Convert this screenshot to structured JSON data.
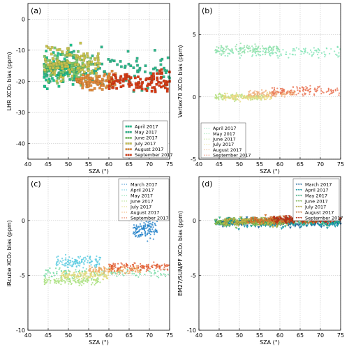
{
  "chart_data": [
    {
      "type": "scatter",
      "panel_label": "(a)",
      "xlabel": "SZA (°)",
      "ylabel": "LHR XCO₂ bias (ppm)",
      "xlim": [
        40,
        75
      ],
      "ylim": [
        -45,
        5
      ],
      "xticks": [
        "40",
        "45",
        "50",
        "55",
        "60",
        "65",
        "70",
        "75"
      ],
      "yticks": [
        "0",
        "-10",
        "-20",
        "-30",
        "-40"
      ],
      "grid": true,
      "legend_position": "lower-right",
      "marker": "square",
      "series": [
        {
          "name": "April 2017",
          "color": "#1fc18c",
          "x_range": [
            44,
            52
          ],
          "y_mean": -16,
          "y_spread": 6
        },
        {
          "name": "May 2017",
          "color": "#2fb58a",
          "x_range": [
            44,
            75
          ],
          "y_mean": -16,
          "y_spread": 7
        },
        {
          "name": "June 2017",
          "color": "#7cc86a",
          "x_range": [
            44,
            56
          ],
          "y_mean": -15,
          "y_spread": 6
        },
        {
          "name": "July 2017",
          "color": "#c7c24f",
          "x_range": [
            44,
            58
          ],
          "y_mean": -14,
          "y_spread": 6
        },
        {
          "name": "August 2017",
          "color": "#e08a3a",
          "x_range": [
            52,
            62
          ],
          "y_mean": -20,
          "y_spread": 3
        },
        {
          "name": "September 2017",
          "color": "#d43b16",
          "x_range": [
            60,
            75
          ],
          "y_mean": -20,
          "y_spread": 4
        }
      ]
    },
    {
      "type": "scatter",
      "panel_label": "(b)",
      "xlabel": "SZA (°)",
      "ylabel": "Vertex70 XCO₂ bias (ppm)",
      "xlim": [
        40,
        75
      ],
      "ylim": [
        -5,
        7.5
      ],
      "xticks": [
        "40",
        "45",
        "50",
        "55",
        "60",
        "65",
        "70",
        "75"
      ],
      "yticks": [
        "5",
        "0",
        "-5"
      ],
      "grid": true,
      "legend_position": "lower-left",
      "marker": "dot",
      "series": [
        {
          "name": "April 2017",
          "color": "#7fe3b5",
          "x_range": [
            44,
            75
          ],
          "y_mean": 3.6,
          "y_spread": 0.5
        },
        {
          "name": "May 2017",
          "color": "#8ee0a8",
          "x_range": [
            44,
            60
          ],
          "y_mean": 3.8,
          "y_spread": 0.4
        },
        {
          "name": "June 2017",
          "color": "#b5e07e",
          "x_range": [
            44,
            56
          ],
          "y_mean": 0.0,
          "y_spread": 0.3
        },
        {
          "name": "July 2017",
          "color": "#e8d880",
          "x_range": [
            46,
            58
          ],
          "y_mean": 0.0,
          "y_spread": 0.3
        },
        {
          "name": "August 2017",
          "color": "#f0b080",
          "x_range": [
            52,
            64
          ],
          "y_mean": 0.3,
          "y_spread": 0.3
        },
        {
          "name": "September 2017",
          "color": "#e87050",
          "x_range": [
            58,
            75
          ],
          "y_mean": 0.5,
          "y_spread": 0.4
        }
      ]
    },
    {
      "type": "scatter",
      "panel_label": "(c)",
      "xlabel": "SZA (°)",
      "ylabel": "IRcube XCO₂ bias (ppm)",
      "xlim": [
        40,
        75
      ],
      "ylim": [
        -10,
        4
      ],
      "xticks": [
        "40",
        "45",
        "50",
        "55",
        "60",
        "65",
        "70",
        "75"
      ],
      "yticks": [
        "0",
        "-5",
        "-10"
      ],
      "grid": true,
      "legend_position": "upper-right",
      "marker": "dot",
      "series": [
        {
          "name": "March 2017",
          "color": "#1f7fc8",
          "x_range": [
            66,
            72
          ],
          "y_mean": -0.8,
          "y_spread": 1.0
        },
        {
          "name": "April 2017",
          "color": "#55c9e0",
          "x_range": [
            47,
            58
          ],
          "y_mean": -3.8,
          "y_spread": 0.7
        },
        {
          "name": "May 2017",
          "color": "#6fd9a0",
          "x_range": [
            44,
            75
          ],
          "y_mean": -4.8,
          "y_spread": 0.5
        },
        {
          "name": "June 2017",
          "color": "#a8e07c",
          "x_range": [
            44,
            58
          ],
          "y_mean": -5.5,
          "y_spread": 0.4
        },
        {
          "name": "July 2017",
          "color": "#e0d875",
          "x_range": [
            48,
            60
          ],
          "y_mean": -5.0,
          "y_spread": 0.4
        },
        {
          "name": "August 2017",
          "color": "#f0a860",
          "x_range": [
            55,
            68
          ],
          "y_mean": -4.5,
          "y_spread": 0.4
        },
        {
          "name": "September 2017",
          "color": "#e0582c",
          "x_range": [
            60,
            75
          ],
          "y_mean": -4.2,
          "y_spread": 0.4
        }
      ]
    },
    {
      "type": "scatter",
      "panel_label": "(d)",
      "xlabel": "SZA (°)",
      "ylabel": "EM27/SUN/PF XCO₂ bias (ppm)",
      "xlim": [
        40,
        75
      ],
      "ylim": [
        -10,
        4
      ],
      "xticks": [
        "40",
        "45",
        "50",
        "55",
        "60",
        "65",
        "70",
        "75"
      ],
      "yticks": [
        "0",
        "-5",
        "-10"
      ],
      "grid": true,
      "legend_position": "upper-right",
      "marker": "triangle-down",
      "series": [
        {
          "name": "March 2017",
          "color": "#1b6fae",
          "x_range": [
            44,
            75
          ],
          "y_mean": -0.2,
          "y_spread": 0.4
        },
        {
          "name": "April 2017",
          "color": "#1aa7b8",
          "x_range": [
            44,
            75
          ],
          "y_mean": -0.3,
          "y_spread": 0.4
        },
        {
          "name": "May 2017",
          "color": "#36c28c",
          "x_range": [
            44,
            75
          ],
          "y_mean": -0.1,
          "y_spread": 0.4
        },
        {
          "name": "June 2017",
          "color": "#8ccc5a",
          "x_range": [
            44,
            60
          ],
          "y_mean": -0.2,
          "y_spread": 0.4
        },
        {
          "name": "July 2017",
          "color": "#c9bc4a",
          "x_range": [
            46,
            62
          ],
          "y_mean": -0.1,
          "y_spread": 0.4
        },
        {
          "name": "August 2017",
          "color": "#e07a32",
          "x_range": [
            52,
            70
          ],
          "y_mean": 0.0,
          "y_spread": 0.4
        },
        {
          "name": "September 2017",
          "color": "#c9381a",
          "x_range": [
            58,
            75
          ],
          "y_mean": 0.1,
          "y_spread": 0.4
        }
      ]
    }
  ]
}
